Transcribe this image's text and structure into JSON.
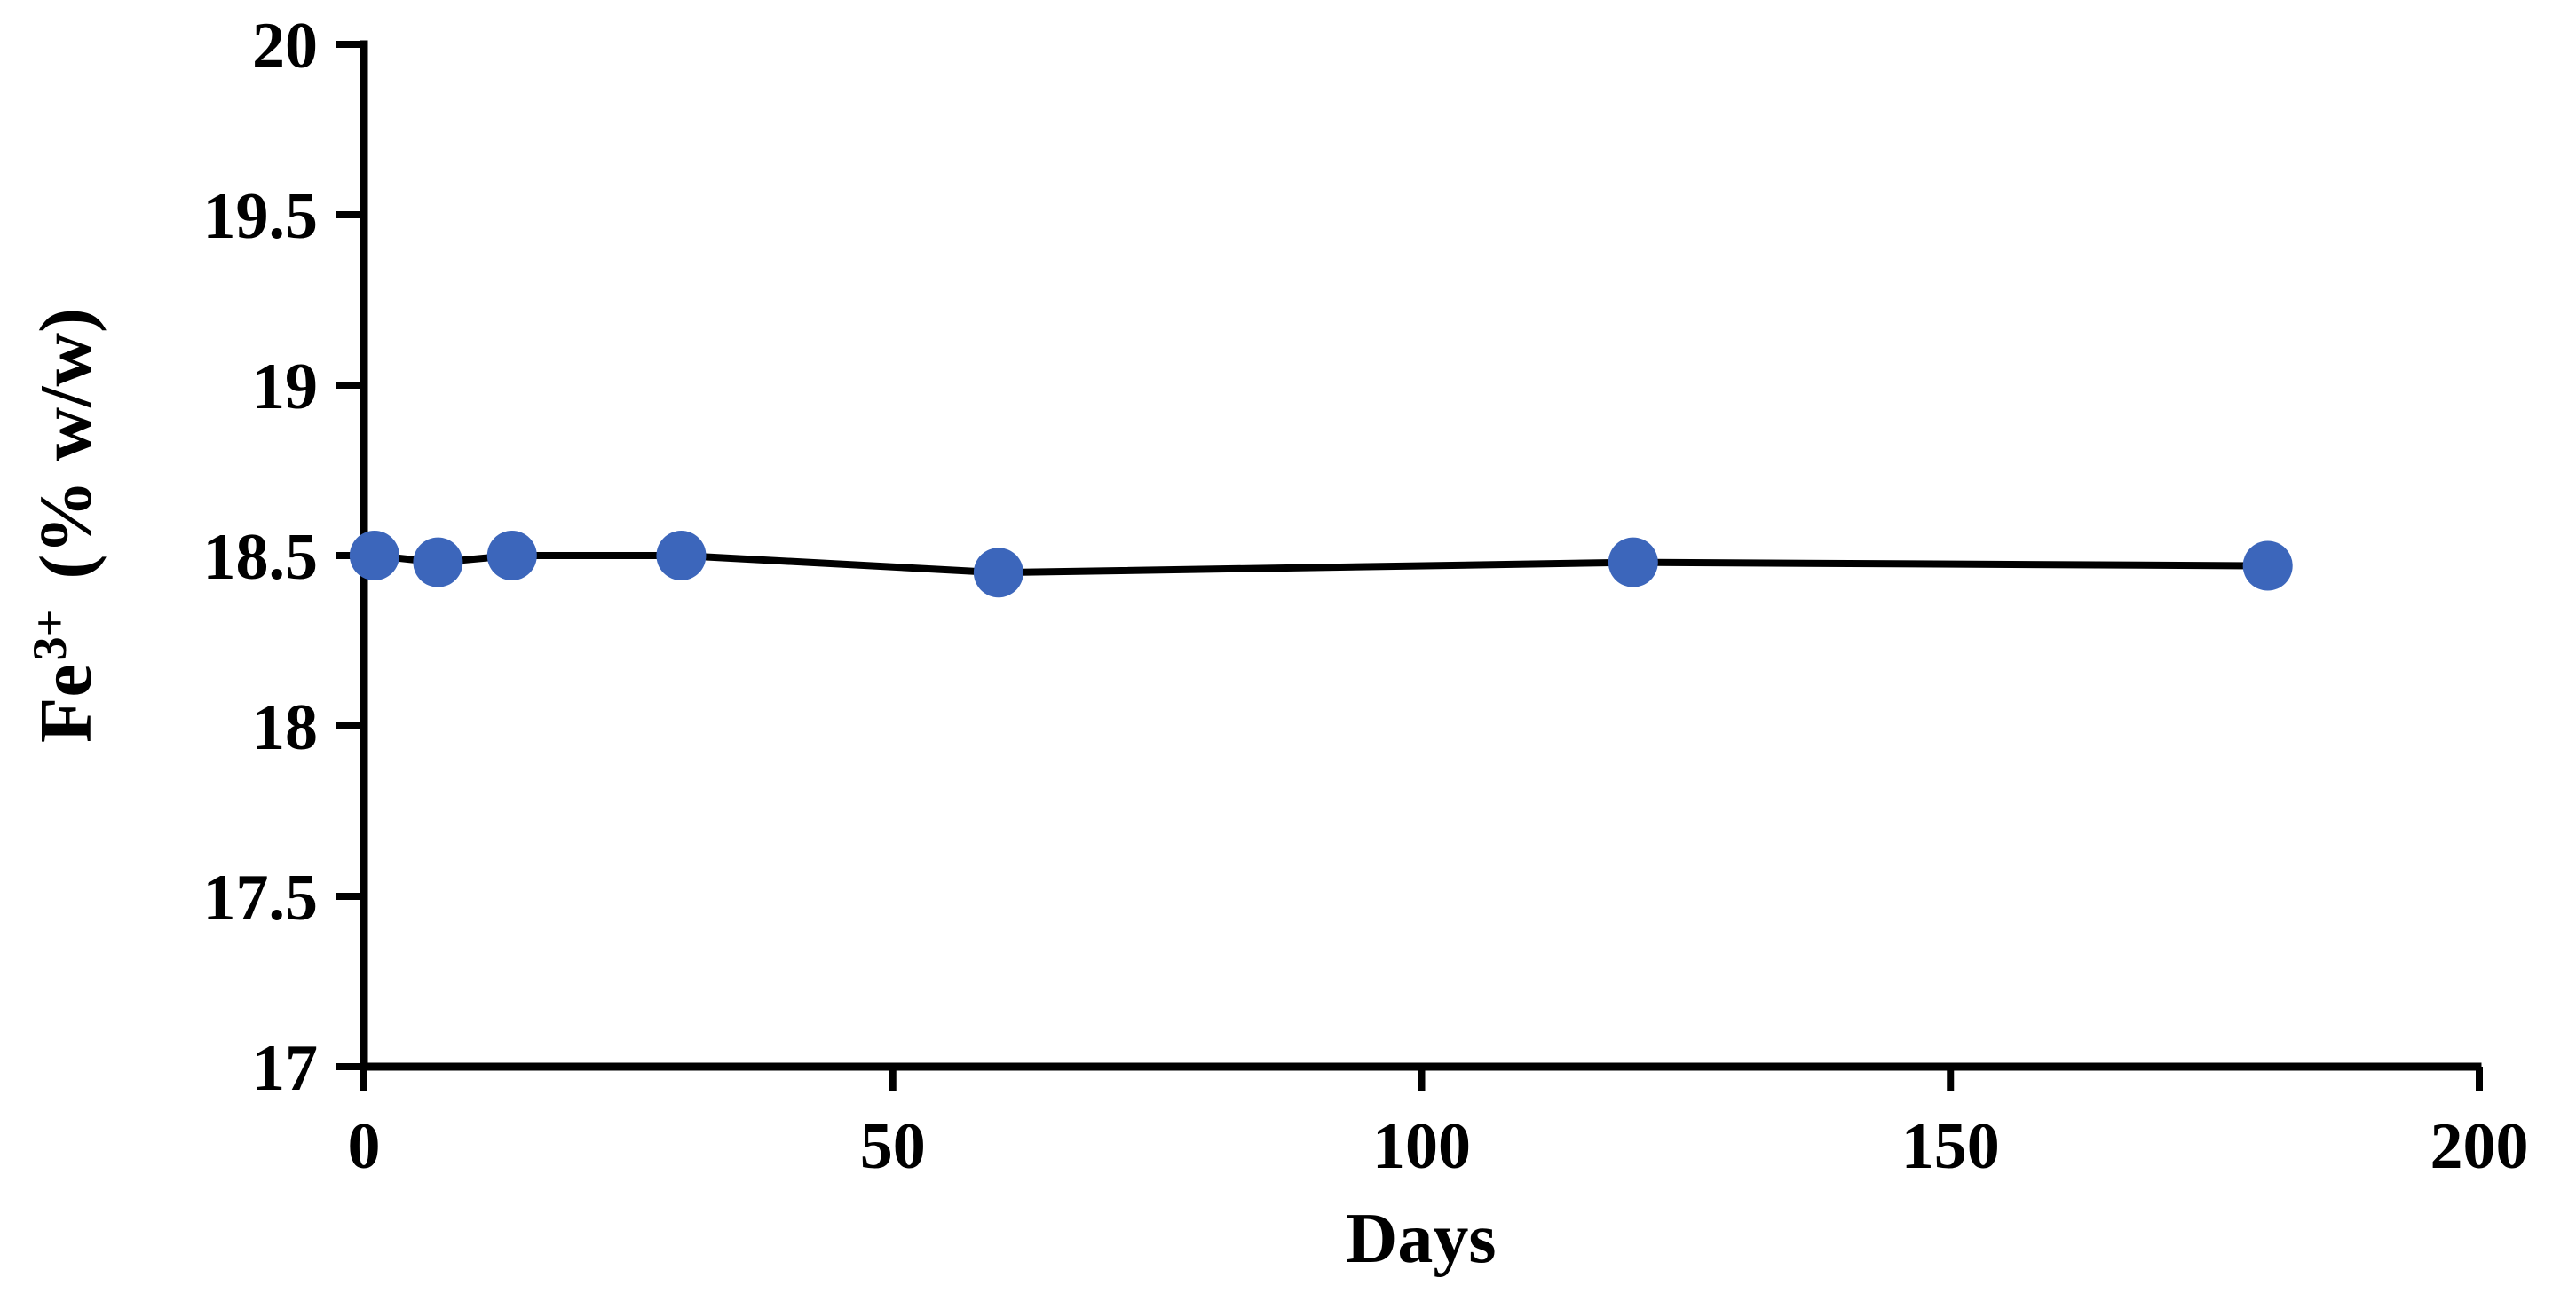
{
  "chart_data": {
    "type": "line",
    "title": "",
    "xlabel": "Days",
    "ylabel": "Fe3+ (% w/w)",
    "ylabel_parts": {
      "base": "Fe",
      "superscript": "3+",
      "unit": "(% w/w)"
    },
    "x": [
      1,
      7,
      14,
      30,
      60,
      120,
      180
    ],
    "y": [
      18.5,
      18.48,
      18.5,
      18.5,
      18.45,
      18.48,
      18.47
    ],
    "xlim": [
      0,
      200
    ],
    "ylim": [
      17,
      20
    ],
    "xticks": [
      0,
      50,
      100,
      150,
      200
    ],
    "xtick_labels": [
      "0",
      "50",
      "100",
      "150",
      "200"
    ],
    "yticks": [
      17,
      17.5,
      18,
      18.5,
      19,
      19.5,
      20
    ],
    "ytick_labels": [
      "17",
      "17.5",
      "18",
      "18.5",
      "19",
      "19.5",
      "20"
    ],
    "grid": false,
    "legend": false,
    "marker": "circle",
    "marker_color": "#3C66BB",
    "line_color": "#000000",
    "axis_color": "#000000",
    "text_color": "#000000",
    "background_color": "#ffffff"
  }
}
